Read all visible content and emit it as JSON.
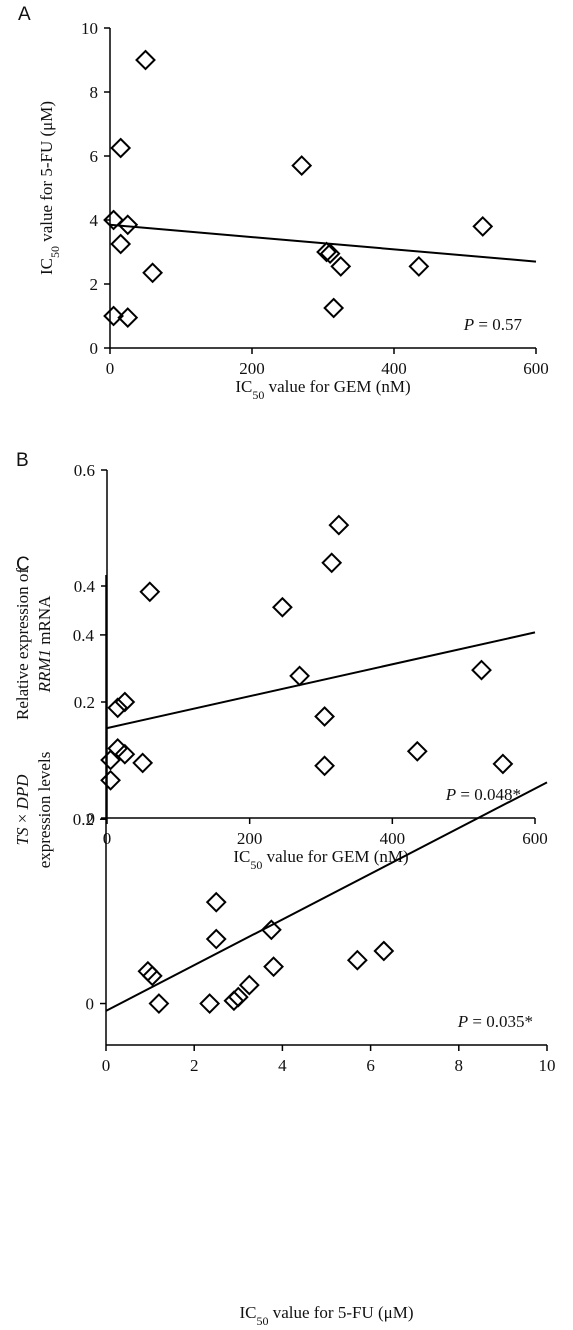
{
  "chart_data": [
    {
      "type": "scatter",
      "panel_label": "A",
      "marker": "diamond",
      "color": "#000000",
      "xlabel": [
        {
          "text": "IC"
        },
        {
          "text": "50",
          "sub": true
        },
        {
          "text": " value for GEM (nM)"
        }
      ],
      "ylabel": [
        [
          {
            "text": "IC"
          },
          {
            "text": "50",
            "sub": true
          },
          {
            "text": " value for 5-FU (μM)"
          }
        ]
      ],
      "annotation": [
        {
          "text": "P",
          "italic": true
        },
        {
          "text": " = 0.57"
        }
      ],
      "x": [
        50,
        15,
        270,
        5,
        25,
        15,
        60,
        305,
        310,
        325,
        435,
        525,
        315,
        5,
        25
      ],
      "y": [
        9.0,
        6.25,
        5.7,
        4.0,
        3.85,
        3.25,
        2.35,
        3.0,
        2.95,
        2.55,
        2.55,
        3.8,
        1.25,
        1.0,
        0.95
      ],
      "xlim": [
        0,
        600
      ],
      "ylim": [
        0,
        10
      ],
      "xticks": [
        0,
        200,
        400,
        600
      ],
      "yticks": [
        0,
        2,
        4,
        6,
        8,
        10
      ],
      "trendline": {
        "x": [
          0,
          600
        ],
        "y": [
          3.85,
          2.7
        ]
      }
    },
    {
      "type": "scatter",
      "panel_label": "B",
      "marker": "diamond",
      "color": "#000000",
      "xlabel": [
        {
          "text": "IC"
        },
        {
          "text": "50",
          "sub": true
        },
        {
          "text": " value for GEM (nM)"
        }
      ],
      "ylabel": [
        [
          {
            "text": "Relative expression of"
          }
        ],
        [
          {
            "text": "RRM1",
            "italic": true
          },
          {
            "text": " mRNA"
          }
        ]
      ],
      "annotation": [
        {
          "text": "P",
          "italic": true
        },
        {
          "text": " = 0.048*"
        }
      ],
      "x": [
        325,
        315,
        60,
        270,
        525,
        25,
        15,
        305,
        15,
        25,
        5,
        50,
        305,
        435,
        5
      ],
      "y": [
        0.505,
        0.44,
        0.39,
        0.245,
        0.255,
        0.2,
        0.19,
        0.175,
        0.12,
        0.11,
        0.1,
        0.095,
        0.09,
        0.115,
        0.065
      ],
      "xlim": [
        0,
        600
      ],
      "ylim": [
        0,
        0.6
      ],
      "xticks": [
        0,
        200,
        400,
        600
      ],
      "yticks": [
        0,
        0.2,
        0.4,
        0.6
      ],
      "trendline": {
        "x": [
          0,
          600
        ],
        "y": [
          0.155,
          0.32
        ]
      }
    },
    {
      "type": "scatter",
      "panel_label": "C",
      "marker": "diamond",
      "color": "#000000",
      "xlabel": [
        {
          "text": "IC"
        },
        {
          "text": "50",
          "sub": true
        },
        {
          "text": " value for 5-FU (μM)"
        }
      ],
      "ylabel": [
        [
          {
            "text": "TS",
            "italic": true
          },
          {
            "text": " × "
          },
          {
            "text": "DPD",
            "italic": true
          }
        ],
        [
          {
            "text": "expression levels"
          }
        ]
      ],
      "annotation": [
        {
          "text": "P",
          "italic": true
        },
        {
          "text": " = 0.035*"
        }
      ],
      "x": [
        4.0,
        9.0,
        2.5,
        2.5,
        3.75,
        3.8,
        0.95,
        1.05,
        1.2,
        2.35,
        2.9,
        3.0,
        3.25,
        5.7,
        6.3
      ],
      "y": [
        0.43,
        0.26,
        0.11,
        0.07,
        0.08,
        0.04,
        0.035,
        0.03,
        0.0,
        0.0,
        0.003,
        0.007,
        0.02,
        0.047,
        0.057
      ],
      "xlim": [
        0,
        10
      ],
      "ylim": [
        -0.045,
        0.465
      ],
      "xticks": [
        0,
        2,
        4,
        6,
        8,
        10
      ],
      "yticks": [
        0,
        0.2,
        0.4
      ],
      "trendline": {
        "x": [
          0,
          10
        ],
        "y": [
          -0.008,
          0.24
        ]
      }
    }
  ]
}
